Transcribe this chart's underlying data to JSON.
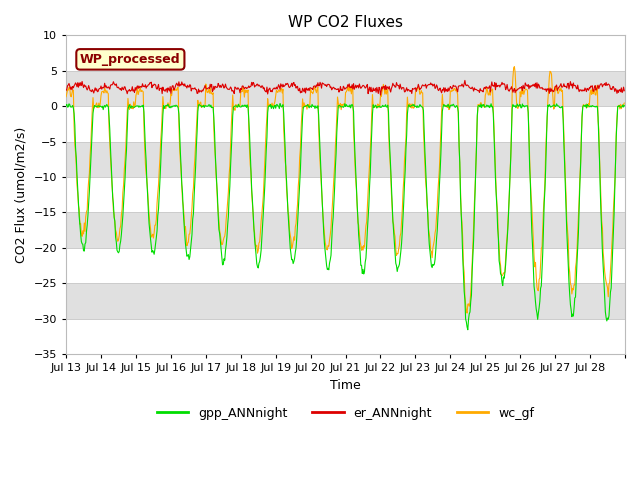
{
  "title": "WP CO2 Fluxes",
  "xlabel": "Time",
  "ylabel_str": "CO2 Flux (umol/m2/s)",
  "ylim": [
    -35,
    10
  ],
  "yticks": [
    10,
    5,
    0,
    -5,
    -10,
    -15,
    -20,
    -25,
    -30,
    -35
  ],
  "n_days": 16,
  "hpd": 48,
  "gpp_color": "#00dd00",
  "er_color": "#dd0000",
  "wc_color": "#ffaa00",
  "plot_bg": "#ffffff",
  "band_color": "#e0e0e0",
  "legend_label": "WP_processed",
  "legend_bg": "#ffffcc",
  "legend_border": "#8b0000",
  "fig_bg": "#ffffff",
  "lw": 0.8,
  "xtick_labels": [
    "Jul 13",
    "Jul 14",
    "Jul 15",
    "Jul 16",
    "Jul 17",
    "Jul 18",
    "Jul 19",
    "Jul 20",
    "Jul 21",
    "Jul 22",
    "Jul 23",
    "Jul 24",
    "Jul 25",
    "Jul 26",
    "Jul 27",
    "Jul 28"
  ]
}
